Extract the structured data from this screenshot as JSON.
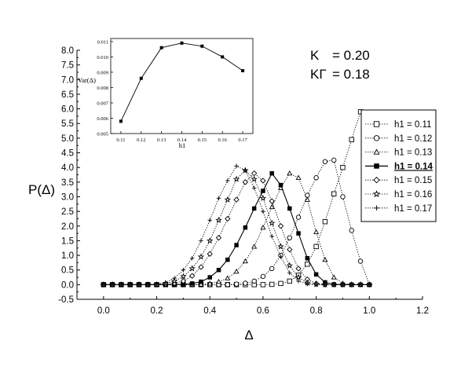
{
  "chart_data": [
    {
      "type": "line",
      "xlabel": "Δ",
      "ylabel": "P(Δ)",
      "xlim": [
        -0.1,
        1.2
      ],
      "ylim": [
        -0.5,
        8.0
      ],
      "xticks": [
        "0.0",
        "0.2",
        "0.4",
        "0.6",
        "0.8",
        "1.0",
        "1.2"
      ],
      "yticks": [
        "-0.5",
        "0.0",
        "0.5",
        "1.0",
        "1.5",
        "2.0",
        "2.5",
        "3.0",
        "3.5",
        "4.0",
        "4.5",
        "5.0",
        "5.5",
        "6.0",
        "6.5",
        "7.0",
        "7.5",
        "8.0"
      ],
      "grid": false,
      "legend_position": "right",
      "annotations": [
        {
          "symbol": "K",
          "value": "= 0.20"
        },
        {
          "symbol": "KΓ",
          "value": "= 0.18"
        }
      ],
      "x": [
        0.0,
        0.0333,
        0.0667,
        0.1,
        0.1333,
        0.1667,
        0.2,
        0.2333,
        0.2667,
        0.3,
        0.3333,
        0.3667,
        0.4,
        0.4333,
        0.4667,
        0.5,
        0.5333,
        0.5667,
        0.6,
        0.6333,
        0.6667,
        0.7,
        0.7333,
        0.7667,
        0.8,
        0.8333,
        0.8667,
        0.9,
        0.9333,
        0.9667,
        1.0
      ],
      "series": [
        {
          "name": "h1 = 0.11",
          "marker": "open-square",
          "style": "dotted",
          "highlight": false,
          "values": [
            0,
            0,
            0,
            0,
            0,
            0,
            0,
            0,
            0,
            0,
            0,
            0,
            0,
            0,
            0,
            0,
            0,
            0,
            0,
            0.01,
            0.04,
            0.12,
            0.32,
            0.7,
            1.3,
            2.15,
            3.1,
            4.0,
            4.95,
            5.9,
            5.05
          ]
        },
        {
          "name": "h1 = 0.12",
          "marker": "open-circle",
          "style": "dotted",
          "highlight": false,
          "values": [
            0,
            0,
            0,
            0,
            0,
            0,
            0,
            0,
            0,
            0,
            0,
            0,
            0,
            0,
            0,
            0.02,
            0.05,
            0.12,
            0.28,
            0.55,
            1.0,
            1.6,
            2.3,
            3.05,
            3.65,
            4.2,
            4.25,
            3.0,
            1.85,
            0.8,
            0.0
          ]
        },
        {
          "name": "h1 = 0.13",
          "marker": "open-triangle",
          "style": "dotted",
          "highlight": false,
          "values": [
            0,
            0,
            0,
            0,
            0,
            0,
            0,
            0,
            0,
            0,
            0,
            0.01,
            0.04,
            0.1,
            0.22,
            0.45,
            0.8,
            1.3,
            1.95,
            2.65,
            3.3,
            3.8,
            3.65,
            2.9,
            1.8,
            0.85,
            0.25,
            0.04,
            0,
            0,
            0
          ]
        },
        {
          "name": "h1 = 0.14",
          "marker": "filled-square",
          "style": "solid",
          "highlight": true,
          "values": [
            0,
            0,
            0,
            0,
            0,
            0,
            0,
            0,
            0,
            0.01,
            0.04,
            0.1,
            0.25,
            0.5,
            0.85,
            1.35,
            1.95,
            2.6,
            3.2,
            3.8,
            3.4,
            2.6,
            1.75,
            0.9,
            0.35,
            0.08,
            0.01,
            0,
            0,
            0,
            0
          ]
        },
        {
          "name": "h1 = 0.15",
          "marker": "open-diamond",
          "style": "dotted",
          "highlight": false,
          "values": [
            0,
            0,
            0,
            0,
            0,
            0,
            0,
            0.02,
            0.05,
            0.12,
            0.3,
            0.6,
            1.05,
            1.6,
            2.25,
            2.9,
            3.5,
            3.8,
            3.55,
            2.85,
            2.0,
            1.2,
            0.55,
            0.18,
            0.04,
            0,
            0,
            0,
            0,
            0,
            0
          ]
        },
        {
          "name": "h1 = 0.16",
          "marker": "star",
          "style": "dotted",
          "highlight": false,
          "values": [
            0,
            0,
            0,
            0,
            0,
            0,
            0,
            0.04,
            0.12,
            0.28,
            0.55,
            0.95,
            1.5,
            2.2,
            2.9,
            3.6,
            3.9,
            3.6,
            2.95,
            2.1,
            1.3,
            0.65,
            0.25,
            0.06,
            0.01,
            0,
            0,
            0,
            0,
            0,
            0
          ]
        },
        {
          "name": "h1 = 0.17",
          "marker": "plus",
          "style": "dotted",
          "highlight": false,
          "values": [
            0,
            0,
            0,
            0,
            0,
            0,
            0.02,
            0.08,
            0.22,
            0.5,
            0.9,
            1.5,
            2.2,
            2.95,
            3.55,
            4.05,
            3.9,
            3.3,
            2.5,
            1.65,
            0.95,
            0.4,
            0.12,
            0.02,
            0,
            0,
            0,
            0,
            0,
            0,
            0
          ]
        }
      ]
    },
    {
      "type": "line",
      "role": "inset",
      "xlabel": "h1",
      "ylabel": "Var(Δ)",
      "xlim": [
        0.105,
        0.175
      ],
      "ylim": [
        0.005,
        0.0112
      ],
      "xticks": [
        "0.11",
        "0.12",
        "0.13",
        "0.14",
        "0.15",
        "0.16",
        "0.17"
      ],
      "yticks": [
        "0.005",
        "0.006",
        "0.007",
        "0.008",
        "0.009",
        "0.010",
        "0.011"
      ],
      "x": [
        0.11,
        0.12,
        0.13,
        0.14,
        0.15,
        0.16,
        0.17
      ],
      "series": [
        {
          "name": "",
          "marker": "filled-square",
          "values": [
            0.0058,
            0.0086,
            0.0106,
            0.0109,
            0.0107,
            0.01,
            0.0091
          ]
        }
      ]
    }
  ]
}
